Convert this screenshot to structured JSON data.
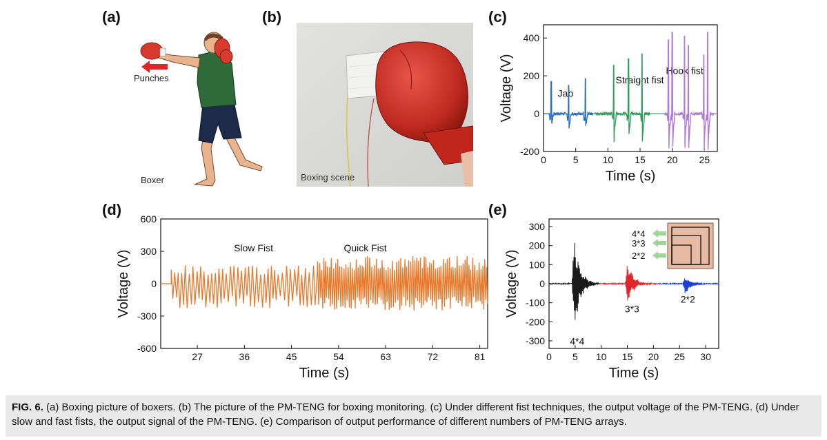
{
  "panels": {
    "a": {
      "label": "(a)",
      "arrow_text": "Punches",
      "bottom_text": "Boxer"
    },
    "b": {
      "label": "(b)",
      "scene_text": "Boxing scene"
    },
    "c": {
      "label": "(c)"
    },
    "d": {
      "label": "(d)"
    },
    "e": {
      "label": "(e)"
    }
  },
  "caption": {
    "lead": "FIG. 6.",
    "text": " (a) Boxing picture of boxers. (b) The picture of the PM-TENG for boxing monitoring. (c) Under different fist techniques, the output voltage of the PM-TENG. (d) Under slow and fast fists, the output signal of the PM-TENG. (e) Comparison of output performance of different numbers of PM-TENG arrays."
  },
  "colors": {
    "jab": "#2b6fc4",
    "straight": "#2e9e5e",
    "hook": "#b07ad8",
    "orange": "#e8782a",
    "e_black": "#1a1a1a",
    "e_red": "#e0262a",
    "e_blue": "#1d3fd6",
    "glove": "#d93a2e"
  },
  "chart_data": [
    {
      "id": "c",
      "type": "line",
      "xlabel": "Time (s)",
      "ylabel": "Voltage (V)",
      "xlim": [
        0,
        27
      ],
      "ylim": [
        -200,
        470
      ],
      "xticks": [
        0,
        5,
        10,
        15,
        20,
        25
      ],
      "yticks": [
        -200,
        0,
        200,
        400
      ],
      "annotations": [
        {
          "text": "Jab",
          "x": 2.2,
          "y": 90
        },
        {
          "text": "Straight fist",
          "x": 11.2,
          "y": 160
        },
        {
          "text": "Hook fist",
          "x": 19.0,
          "y": 210
        }
      ],
      "series": [
        {
          "color_key": "jab",
          "peaks": [
            [
              1.2,
              170,
              -45
            ],
            [
              3.9,
              150,
              -70
            ],
            [
              6.5,
              185,
              -60
            ]
          ],
          "range": [
            0.8,
            7.7
          ]
        },
        {
          "color_key": "straight",
          "peaks": [
            [
              10.9,
              255,
              -110
            ],
            [
              13.2,
              290,
              -95
            ],
            [
              15.3,
              315,
              -125
            ]
          ],
          "range": [
            8.0,
            16.5
          ]
        },
        {
          "color_key": "hook",
          "peaks": [
            [
              19.4,
              390,
              -150
            ],
            [
              20.0,
              430,
              -150
            ],
            [
              21.9,
              410,
              -145
            ],
            [
              22.5,
              360,
              -150
            ],
            [
              24.9,
              310,
              -150
            ],
            [
              25.5,
              430,
              -150
            ]
          ],
          "range": [
            18.8,
            26.5
          ]
        }
      ]
    },
    {
      "id": "d",
      "type": "line",
      "xlabel": "Time (s)",
      "ylabel": "Voltage (V)",
      "xlim": [
        20,
        82.5
      ],
      "ylim": [
        -600,
        600
      ],
      "xticks": [
        27,
        36,
        45,
        54,
        63,
        72,
        81
      ],
      "yticks": [
        -600,
        -300,
        0,
        300,
        600
      ],
      "annotations": [
        {
          "text": "Slow Fist",
          "x": 34,
          "y": 300
        },
        {
          "text": "Quick Fist",
          "x": 55,
          "y": 300
        }
      ],
      "regions": [
        {
          "name": "Slow Fist",
          "range": [
            22,
            50
          ],
          "amplitude": [
            150,
            -200
          ],
          "period": 0.72
        },
        {
          "name": "Quick Fist",
          "range": [
            50,
            82.5
          ],
          "amplitude": [
            230,
            -220
          ],
          "period": 0.38
        }
      ]
    },
    {
      "id": "e",
      "type": "line",
      "xlabel": "Time (s)",
      "ylabel": "Voltage (V)",
      "xlim": [
        0,
        32.5
      ],
      "ylim": [
        -340,
        340
      ],
      "xticks": [
        0,
        5,
        10,
        15,
        20,
        25,
        30
      ],
      "yticks": [
        -300,
        -200,
        -100,
        0,
        100,
        200,
        300
      ],
      "annotations": [
        {
          "text": "4*4",
          "x": 4.0,
          "y": -320
        },
        {
          "text": "3*3",
          "x": 14.5,
          "y": -150
        },
        {
          "text": "2*2",
          "x": 25.2,
          "y": -100
        }
      ],
      "bursts": [
        {
          "name": "4*4",
          "color_key": "e_black",
          "range": [
            0,
            10
          ],
          "center": 4.8,
          "peak": 270,
          "trough": -280
        },
        {
          "name": "3*3",
          "color_key": "e_red",
          "range": [
            10,
            21
          ],
          "center": 15.0,
          "peak": 125,
          "trough": -105
        },
        {
          "name": "2*2",
          "color_key": "e_blue",
          "range": [
            21,
            32.5
          ],
          "center": 26.0,
          "peak": 40,
          "trough": -65
        }
      ],
      "inset_labels": [
        "4*4",
        "3*3",
        "2*2"
      ]
    }
  ]
}
